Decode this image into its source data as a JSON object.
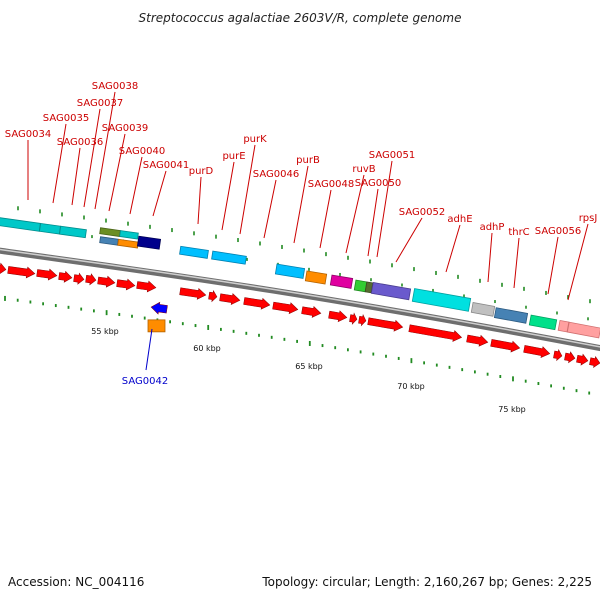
{
  "title": "Streptococcus agalactiae 2603V/R, complete genome",
  "footer": {
    "accession": "Accession: NC_004116",
    "summary": "Topology: circular; Length: 2,160,267 bp; Genes: 2,225"
  },
  "colors": {
    "cds_forward": "#ff0000",
    "cds_reverse": "#0000ff",
    "label_forward": "#cc0000",
    "label_reverse": "#0000cc",
    "backbone": "#888888",
    "ticks": "#228b22"
  },
  "scale_labels": [
    "55 kbp",
    "60 kbp",
    "65 kbp",
    "70 kbp",
    "75 kbp"
  ],
  "gene_labels_forward": [
    "SAG0034",
    "SAG0035",
    "SAG0036",
    "SAG0037",
    "SAG0038",
    "SAG0039",
    "SAG0040",
    "SAG0041",
    "purD",
    "purE",
    "purK",
    "SAG0046",
    "purB",
    "SAG0048",
    "ruvB",
    "SAG0050",
    "SAG0051",
    "SAG0052",
    "adhE",
    "adhP",
    "thrC",
    "SAG0056",
    "rpsJ"
  ],
  "gene_labels_reverse": [
    "SAG0042"
  ]
}
